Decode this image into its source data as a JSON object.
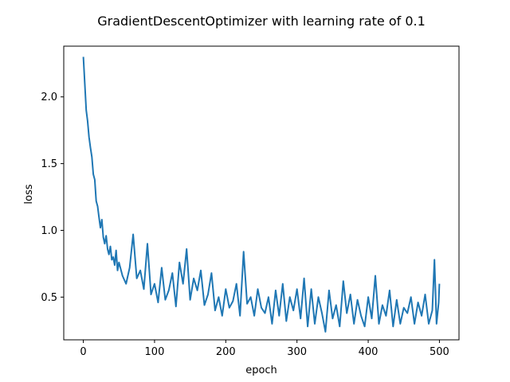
{
  "chart_data": {
    "type": "line",
    "title": "GradientDescentOptimizer with learning rate of 0.1",
    "xlabel": "epoch",
    "ylabel": "loss",
    "xlim": [
      -27.5,
      527.5
    ],
    "ylim": [
      0.18,
      2.38
    ],
    "xticks": [
      0,
      100,
      200,
      300,
      400,
      500
    ],
    "xtick_labels": [
      "0",
      "100",
      "200",
      "300",
      "400",
      "500"
    ],
    "yticks": [
      0.5,
      1.0,
      1.5,
      2.0
    ],
    "ytick_labels": [
      "0.5",
      "1.0",
      "1.5",
      "2.0"
    ],
    "grid": false,
    "legend": "none",
    "series": [
      {
        "color": "#1f77b4",
        "x": [
          0,
          2,
          4,
          6,
          8,
          10,
          12,
          14,
          16,
          18,
          20,
          22,
          24,
          26,
          28,
          30,
          32,
          34,
          36,
          38,
          40,
          42,
          44,
          46,
          48,
          50,
          55,
          60,
          65,
          70,
          75,
          80,
          85,
          90,
          95,
          100,
          105,
          110,
          115,
          120,
          125,
          130,
          135,
          140,
          145,
          150,
          155,
          160,
          165,
          170,
          175,
          180,
          185,
          190,
          195,
          200,
          205,
          210,
          215,
          220,
          225,
          230,
          235,
          240,
          245,
          250,
          255,
          260,
          265,
          270,
          275,
          280,
          285,
          290,
          295,
          300,
          305,
          310,
          315,
          320,
          325,
          330,
          335,
          340,
          345,
          350,
          355,
          360,
          365,
          370,
          375,
          380,
          385,
          390,
          395,
          400,
          405,
          410,
          415,
          420,
          425,
          430,
          435,
          440,
          445,
          450,
          455,
          460,
          465,
          470,
          475,
          480,
          485,
          490,
          493,
          496,
          499,
          500
        ],
        "y": [
          2.3,
          2.1,
          1.9,
          1.82,
          1.7,
          1.62,
          1.55,
          1.42,
          1.38,
          1.22,
          1.18,
          1.1,
          1.02,
          1.08,
          0.95,
          0.9,
          0.96,
          0.86,
          0.82,
          0.88,
          0.78,
          0.8,
          0.74,
          0.85,
          0.7,
          0.76,
          0.66,
          0.6,
          0.72,
          0.97,
          0.64,
          0.7,
          0.56,
          0.9,
          0.52,
          0.6,
          0.46,
          0.72,
          0.48,
          0.55,
          0.68,
          0.43,
          0.76,
          0.6,
          0.86,
          0.48,
          0.64,
          0.55,
          0.7,
          0.44,
          0.52,
          0.68,
          0.4,
          0.5,
          0.36,
          0.56,
          0.42,
          0.47,
          0.6,
          0.36,
          0.84,
          0.45,
          0.5,
          0.36,
          0.56,
          0.42,
          0.38,
          0.5,
          0.3,
          0.55,
          0.36,
          0.6,
          0.32,
          0.5,
          0.4,
          0.56,
          0.34,
          0.64,
          0.28,
          0.56,
          0.3,
          0.5,
          0.38,
          0.24,
          0.55,
          0.34,
          0.44,
          0.28,
          0.62,
          0.38,
          0.52,
          0.3,
          0.48,
          0.36,
          0.28,
          0.5,
          0.34,
          0.66,
          0.3,
          0.44,
          0.36,
          0.55,
          0.28,
          0.48,
          0.3,
          0.42,
          0.38,
          0.5,
          0.3,
          0.46,
          0.36,
          0.52,
          0.3,
          0.4,
          0.78,
          0.3,
          0.46,
          0.6
        ]
      }
    ]
  }
}
